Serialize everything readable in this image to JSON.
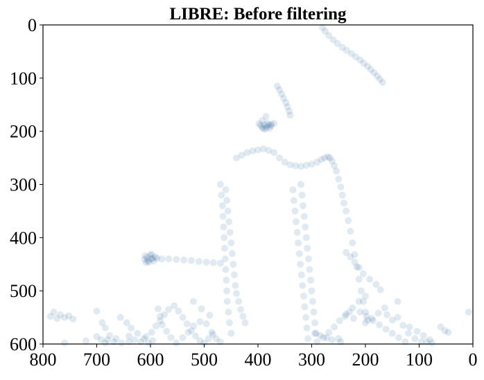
{
  "chart_data": {
    "type": "scatter",
    "title": "LIBRE: Before filtering",
    "xlabel": "",
    "ylabel": "",
    "xlim": [
      800,
      0
    ],
    "ylim": [
      600,
      0
    ],
    "x_ticks": [
      800,
      700,
      600,
      500,
      400,
      300,
      200,
      100,
      0
    ],
    "y_ticks": [
      0,
      100,
      200,
      300,
      400,
      500,
      600
    ],
    "marker_color": "#0b4a8f",
    "marker_alpha": 0.12,
    "grid": false,
    "legend": "none",
    "series": [
      {
        "points": [
          [
            280,
            5
          ],
          [
            275,
            12
          ],
          [
            268,
            20
          ],
          [
            260,
            28
          ],
          [
            252,
            35
          ],
          [
            243,
            42
          ],
          [
            235,
            48
          ],
          [
            226,
            54
          ],
          [
            218,
            60
          ],
          [
            210,
            66
          ],
          [
            203,
            72
          ],
          [
            196,
            78
          ],
          [
            190,
            84
          ],
          [
            184,
            90
          ],
          [
            178,
            96
          ],
          [
            173,
            102
          ],
          [
            168,
            108
          ],
          [
            364,
            115
          ],
          [
            360,
            122
          ],
          [
            356,
            130
          ],
          [
            352,
            138
          ],
          [
            348,
            146
          ],
          [
            345,
            154
          ],
          [
            342,
            162
          ],
          [
            340,
            170
          ],
          [
            385,
            172
          ],
          [
            392,
            180
          ],
          [
            398,
            186
          ],
          [
            370,
            185
          ],
          [
            376,
            190
          ],
          [
            380,
            188
          ],
          [
            384,
            192
          ],
          [
            388,
            188
          ],
          [
            392,
            193
          ],
          [
            395,
            189
          ],
          [
            378,
            194
          ],
          [
            386,
            196
          ],
          [
            375,
            187
          ],
          [
            390,
            195
          ],
          [
            382,
            185
          ],
          [
            600,
            433
          ],
          [
            606,
            437
          ],
          [
            611,
            441
          ],
          [
            596,
            439
          ],
          [
            603,
            446
          ],
          [
            591,
            436
          ],
          [
            598,
            431
          ],
          [
            610,
            434
          ],
          [
            605,
            443
          ],
          [
            594,
            444
          ],
          [
            608,
            447
          ],
          [
            599,
            440
          ],
          [
            588,
            439
          ],
          [
            579,
            440
          ],
          [
            566,
            440
          ],
          [
            552,
            441
          ],
          [
            538,
            442
          ],
          [
            524,
            443
          ],
          [
            510,
            445
          ],
          [
            496,
            446
          ],
          [
            483,
            447
          ],
          [
            470,
            448
          ],
          [
            440,
            250
          ],
          [
            430,
            245
          ],
          [
            420,
            240
          ],
          [
            410,
            237
          ],
          [
            400,
            235
          ],
          [
            390,
            233
          ],
          [
            380,
            236
          ],
          [
            370,
            240
          ],
          [
            360,
            250
          ],
          [
            350,
            258
          ],
          [
            340,
            263
          ],
          [
            330,
            265
          ],
          [
            320,
            266
          ],
          [
            310,
            264
          ],
          [
            300,
            262
          ],
          [
            290,
            258
          ],
          [
            282,
            253
          ],
          [
            276,
            250
          ],
          [
            270,
            248
          ],
          [
            266,
            250
          ],
          [
            262,
            256
          ],
          [
            258,
            265
          ],
          [
            254,
            275
          ],
          [
            250,
            290
          ],
          [
            246,
            305
          ],
          [
            243,
            320
          ],
          [
            240,
            335
          ],
          [
            236,
            350
          ],
          [
            232,
            368
          ],
          [
            228,
            388
          ],
          [
            224,
            410
          ],
          [
            220,
            432
          ],
          [
            216,
            455
          ],
          [
            212,
            478
          ],
          [
            208,
            500
          ],
          [
            204,
            520
          ],
          [
            200,
            540
          ],
          [
            196,
            555
          ],
          [
            460,
            310
          ],
          [
            458,
            330
          ],
          [
            456,
            350
          ],
          [
            454,
            370
          ],
          [
            452,
            390
          ],
          [
            450,
            410
          ],
          [
            448,
            430
          ],
          [
            446,
            450
          ],
          [
            444,
            470
          ],
          [
            442,
            490
          ],
          [
            440,
            505
          ],
          [
            436,
            520
          ],
          [
            432,
            535
          ],
          [
            428,
            548
          ],
          [
            424,
            560
          ],
          [
            470,
            300
          ],
          [
            468,
            320
          ],
          [
            466,
            340
          ],
          [
            465,
            360
          ],
          [
            464,
            380
          ],
          [
            463,
            400
          ],
          [
            462,
            420
          ],
          [
            461,
            440
          ],
          [
            460,
            460
          ],
          [
            459,
            480
          ],
          [
            458,
            500
          ],
          [
            457,
            520
          ],
          [
            455,
            540
          ],
          [
            453,
            560
          ],
          [
            450,
            580
          ],
          [
            320,
            300
          ],
          [
            318,
            320
          ],
          [
            316,
            340
          ],
          [
            314,
            360
          ],
          [
            312,
            380
          ],
          [
            310,
            400
          ],
          [
            308,
            420
          ],
          [
            306,
            440
          ],
          [
            304,
            460
          ],
          [
            302,
            480
          ],
          [
            300,
            500
          ],
          [
            298,
            520
          ],
          [
            296,
            540
          ],
          [
            294,
            560
          ],
          [
            292,
            580
          ],
          [
            335,
            310
          ],
          [
            333,
            330
          ],
          [
            331,
            350
          ],
          [
            329,
            370
          ],
          [
            327,
            390
          ],
          [
            325,
            410
          ],
          [
            323,
            430
          ],
          [
            321,
            450
          ],
          [
            319,
            470
          ],
          [
            317,
            490
          ],
          [
            315,
            510
          ],
          [
            313,
            530
          ],
          [
            311,
            550
          ],
          [
            309,
            570
          ],
          [
            307,
            590
          ],
          [
            786,
            548
          ],
          [
            780,
            540
          ],
          [
            774,
            552
          ],
          [
            768,
            545
          ],
          [
            760,
            550
          ],
          [
            752,
            547
          ],
          [
            744,
            553
          ],
          [
            700,
            538
          ],
          [
            690,
            560
          ],
          [
            684,
            570
          ],
          [
            676,
            584
          ],
          [
            668,
            596
          ],
          [
            656,
            550
          ],
          [
            644,
            560
          ],
          [
            636,
            570
          ],
          [
            624,
            580
          ],
          [
            612,
            590
          ],
          [
            604,
            598
          ],
          [
            578,
            564
          ],
          [
            570,
            576
          ],
          [
            562,
            588
          ],
          [
            552,
            598
          ],
          [
            540,
            588
          ],
          [
            530,
            578
          ],
          [
            520,
            566
          ],
          [
            508,
            558
          ],
          [
            496,
            562
          ],
          [
            486,
            578
          ],
          [
            478,
            590
          ],
          [
            470,
            596
          ],
          [
            760,
            598
          ],
          [
            720,
            594
          ],
          [
            680,
            592
          ],
          [
            640,
            596
          ],
          [
            596,
            594
          ],
          [
            586,
            534
          ],
          [
            582,
            548
          ],
          [
            520,
            520
          ],
          [
            505,
            534
          ],
          [
            490,
            546
          ],
          [
            250,
            590
          ],
          [
            246,
            596
          ],
          [
            262,
            592
          ],
          [
            272,
            588
          ],
          [
            284,
            584
          ],
          [
            294,
            580
          ],
          [
            200,
            560
          ],
          [
            188,
            552
          ],
          [
            176,
            542
          ],
          [
            164,
            532
          ],
          [
            160,
            545
          ],
          [
            150,
            555
          ],
          [
            140,
            550
          ],
          [
            130,
            565
          ],
          [
            120,
            580
          ],
          [
            108,
            590
          ],
          [
            96,
            596
          ],
          [
            86,
            596
          ],
          [
            76,
            598
          ],
          [
            60,
            568
          ],
          [
            52,
            575
          ],
          [
            46,
            578
          ],
          [
            8,
            540
          ],
          [
            140,
            520
          ],
          [
            172,
            498
          ],
          [
            180,
            488
          ],
          [
            192,
            478
          ],
          [
            204,
            468
          ],
          [
            212,
            456
          ],
          [
            220,
            446
          ],
          [
            228,
            436
          ],
          [
            236,
            428
          ],
          [
            200,
            510
          ],
          [
            212,
            520
          ],
          [
            224,
            532
          ],
          [
            236,
            544
          ],
          [
            248,
            556
          ],
          [
            258,
            568
          ],
          [
            268,
            578
          ],
          [
            278,
            588
          ],
          [
            290,
            596
          ],
          [
            230,
            540
          ],
          [
            238,
            548
          ],
          [
            222,
            552
          ],
          [
            210,
            540
          ],
          [
            198,
            548
          ],
          [
            186,
            556
          ],
          [
            174,
            564
          ],
          [
            162,
            572
          ],
          [
            150,
            580
          ],
          [
            138,
            588
          ],
          [
            126,
            596
          ],
          [
            118,
            568
          ],
          [
            104,
            576
          ],
          [
            92,
            584
          ],
          [
            80,
            592
          ],
          [
            700,
            586
          ],
          [
            692,
            592
          ],
          [
            684,
            598
          ],
          [
            664,
            590
          ],
          [
            654,
            598
          ],
          [
            640,
            585
          ],
          [
            630,
            592
          ],
          [
            618,
            596
          ],
          [
            608,
            586
          ],
          [
            598,
            578
          ],
          [
            590,
            566
          ],
          [
            582,
            556
          ],
          [
            574,
            545
          ],
          [
            566,
            535
          ],
          [
            556,
            528
          ],
          [
            548,
            538
          ],
          [
            540,
            550
          ],
          [
            532,
            562
          ],
          [
            524,
            575
          ],
          [
            516,
            585
          ],
          [
            508,
            594
          ],
          [
            500,
            598
          ],
          [
            492,
            590
          ],
          [
            484,
            582
          ]
        ]
      }
    ]
  }
}
